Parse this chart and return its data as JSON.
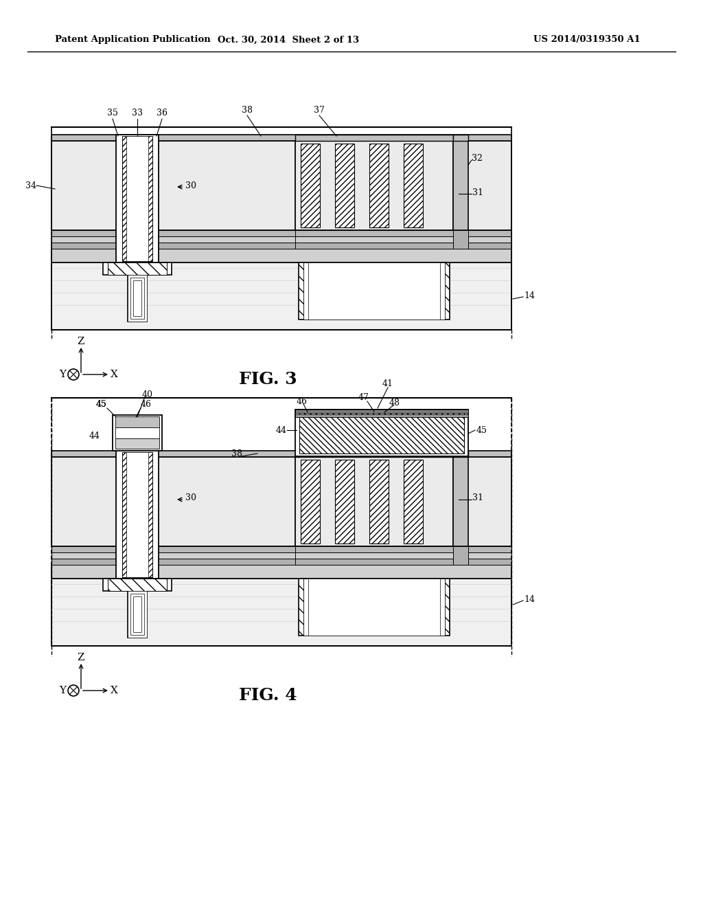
{
  "bg_color": "#ffffff",
  "header_left": "Patent Application Publication",
  "header_mid": "Oct. 30, 2014  Sheet 2 of 13",
  "header_right": "US 2014/0319350 A1",
  "fig3_label": "FIG. 3",
  "fig4_label": "FIG. 4",
  "gray_light": "#e8e8e8",
  "gray_mid": "#c8c8c8",
  "gray_dark": "#909090",
  "label_fs": 9,
  "fig_label_fs": 18,
  "header_fs": 9.5
}
